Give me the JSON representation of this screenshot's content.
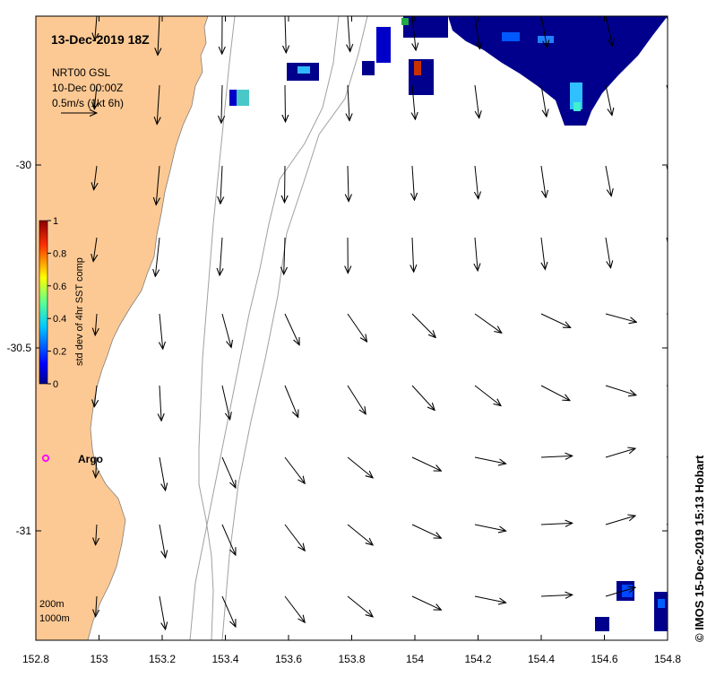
{
  "map": {
    "title": "13-Dec-2019 18Z",
    "legend": {
      "product": "NRT00 GSL",
      "date": "10-Dec 00:00Z",
      "scale_label": "0.5m/s (1kt 6h)"
    },
    "colorbar": {
      "label": "std dev of 4hr SST comp",
      "ticks": [
        "0",
        "0.2",
        "0.4",
        "0.6",
        "0.8",
        "1"
      ]
    },
    "x_ticks": [
      "152.8",
      "153",
      "153.2",
      "153.4",
      "153.6",
      "153.8",
      "154",
      "154.2",
      "154.4",
      "154.6",
      "154.8"
    ],
    "y_ticks": [
      "-30",
      "-30.5",
      "-31"
    ],
    "argo_label": "Argo",
    "isobaths": [
      "200m",
      "1000m"
    ],
    "credit": "© IMOS 15-Dec-2019 15:13 Hobart",
    "colors": {
      "land": "#fcc994",
      "argo": "#ff00ff",
      "isobath": "#a0a0a0",
      "sst_low": "#00008c",
      "sst_high": "#8c0000"
    }
  }
}
